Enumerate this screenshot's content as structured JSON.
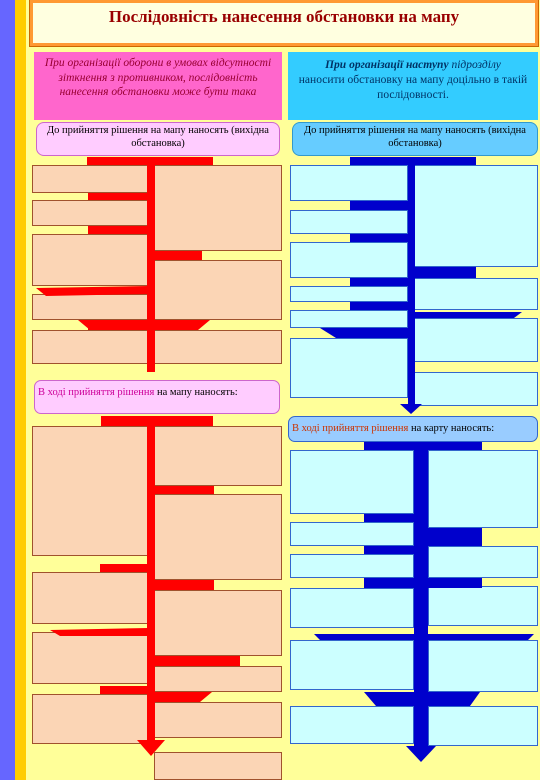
{
  "title": "Послідовність нанесення обстановки на мапу",
  "defense": {
    "header": "При організації оборони в умовах відсутності зіткнення з противником, послідовність нанесення обстановки може бути така",
    "initial_label": "До прийняття рішення на мапу наносять (вихідна обстановка)",
    "decision_lead": "В ході прийняття рішення",
    "decision_rest": " на мапу наносять:"
  },
  "offense": {
    "header_bold": "При організації наступу",
    "header_rest1": " підрозділу ",
    "header_rest2": "наносити обстановку на мапу доцільно в такій послідовності.",
    "initial_label": "До прийняття рішення на мапу наносять (вихідна обстановка)",
    "decision_lead": "В ході прийняття рішення",
    "decision_rest": " на карту наносять:"
  },
  "colors": {
    "defense_trunk": "#ff0000",
    "offense_trunk": "#0000cc",
    "defense_box": "#fbd5b5",
    "offense_box": "#ccffff"
  }
}
